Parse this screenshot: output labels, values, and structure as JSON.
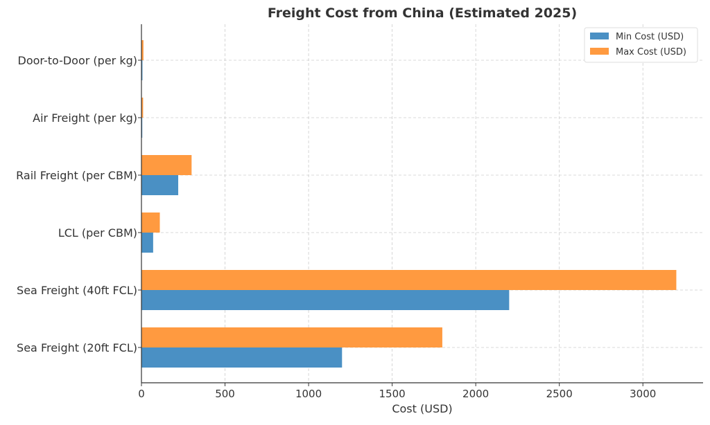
{
  "chart_data": {
    "type": "bar",
    "orientation": "horizontal",
    "title": "Freight Cost from China (Estimated 2025)",
    "xlabel": "Cost (USD)",
    "ylabel": "",
    "categories": [
      "Sea Freight (20ft FCL)",
      "Sea Freight (40ft FCL)",
      "LCL (per CBM)",
      "Rail Freight (per CBM)",
      "Air Freight (per kg)",
      "Door-to-Door (per kg)"
    ],
    "series": [
      {
        "name": "Min Cost (USD)",
        "color": "#4a90c4",
        "values": [
          1200,
          2200,
          70,
          220,
          5,
          6
        ]
      },
      {
        "name": "Max Cost (USD)",
        "color": "#ff9a40",
        "values": [
          1800,
          3200,
          110,
          300,
          10,
          12
        ]
      }
    ],
    "xlim": [
      0,
      3360
    ],
    "xticks": [
      0,
      500,
      1000,
      1500,
      2000,
      2500,
      3000
    ],
    "grid": true,
    "legend": "top-right"
  }
}
